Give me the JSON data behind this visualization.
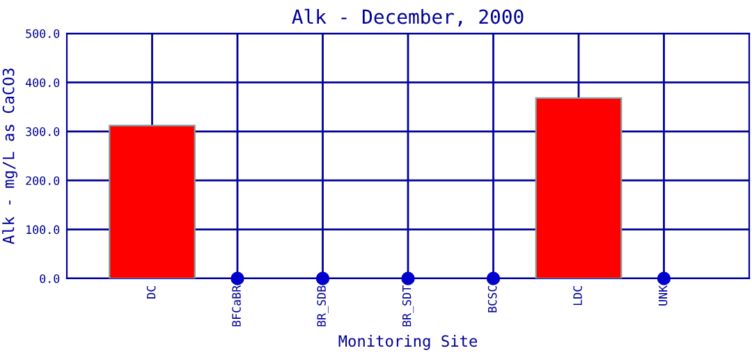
{
  "chart_data": {
    "type": "bar",
    "title": "Alk - December, 2000",
    "xlabel": "Monitoring Site",
    "ylabel": "Alk - mg/L as CaCO3",
    "categories": [
      "DC",
      "BFCaBR",
      "BR_SDB",
      "BR_SDT",
      "BCSC",
      "LDC",
      "UNK"
    ],
    "series": [
      {
        "color": "#ff0000",
        "values": [
          312,
          null,
          null,
          null,
          null,
          368,
          null
        ]
      },
      {
        "type": "scatter",
        "color": "#0000cc",
        "marker": "circle",
        "values": [
          null,
          0,
          0,
          0,
          0,
          null,
          0
        ]
      }
    ],
    "ylim": [
      0,
      500
    ],
    "yticks": [
      {
        "value": 0,
        "label": "0.0"
      },
      {
        "value": 100,
        "label": "100.0"
      },
      {
        "value": 200,
        "label": "200.0"
      },
      {
        "value": 300,
        "label": "300.0"
      },
      {
        "value": 400,
        "label": "400.0"
      },
      {
        "value": 500,
        "label": "500.0"
      }
    ],
    "grid": true
  }
}
